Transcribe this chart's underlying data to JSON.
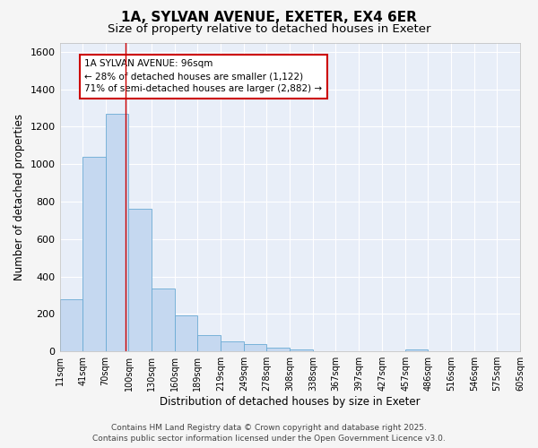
{
  "title_line1": "1A, SYLVAN AVENUE, EXETER, EX4 6ER",
  "title_line2": "Size of property relative to detached houses in Exeter",
  "xlabel": "Distribution of detached houses by size in Exeter",
  "ylabel": "Number of detached properties",
  "bar_values": [
    280,
    1040,
    1270,
    760,
    335,
    190,
    85,
    55,
    40,
    20,
    10,
    0,
    0,
    0,
    0,
    10,
    0,
    0,
    0,
    0
  ],
  "bin_edges": [
    11,
    41,
    70,
    100,
    130,
    160,
    189,
    219,
    249,
    278,
    308,
    338,
    367,
    397,
    427,
    457,
    486,
    516,
    546,
    575,
    605
  ],
  "tick_labels": [
    "11sqm",
    "41sqm",
    "70sqm",
    "100sqm",
    "130sqm",
    "160sqm",
    "189sqm",
    "219sqm",
    "249sqm",
    "278sqm",
    "308sqm",
    "338sqm",
    "367sqm",
    "397sqm",
    "427sqm",
    "457sqm",
    "486sqm",
    "516sqm",
    "546sqm",
    "575sqm",
    "605sqm"
  ],
  "bar_color": "#c5d8f0",
  "bar_edge_color": "#6aaad4",
  "red_line_x": 96,
  "ylim": [
    0,
    1650
  ],
  "yticks": [
    0,
    200,
    400,
    600,
    800,
    1000,
    1200,
    1400,
    1600
  ],
  "annotation_text": "1A SYLVAN AVENUE: 96sqm\n← 28% of detached houses are smaller (1,122)\n71% of semi-detached houses are larger (2,882) →",
  "annotation_box_color": "#ffffff",
  "annotation_box_edge_color": "#cc0000",
  "fig_background_color": "#f5f5f5",
  "plot_background": "#e8eef8",
  "grid_color": "#ffffff",
  "footer_line1": "Contains HM Land Registry data © Crown copyright and database right 2025.",
  "footer_line2": "Contains public sector information licensed under the Open Government Licence v3.0.",
  "title_fontsize": 11,
  "subtitle_fontsize": 9.5,
  "ylabel_fontsize": 8.5,
  "xlabel_fontsize": 8.5,
  "tick_fontsize": 7,
  "annotation_fontsize": 7.5,
  "footer_fontsize": 6.5
}
